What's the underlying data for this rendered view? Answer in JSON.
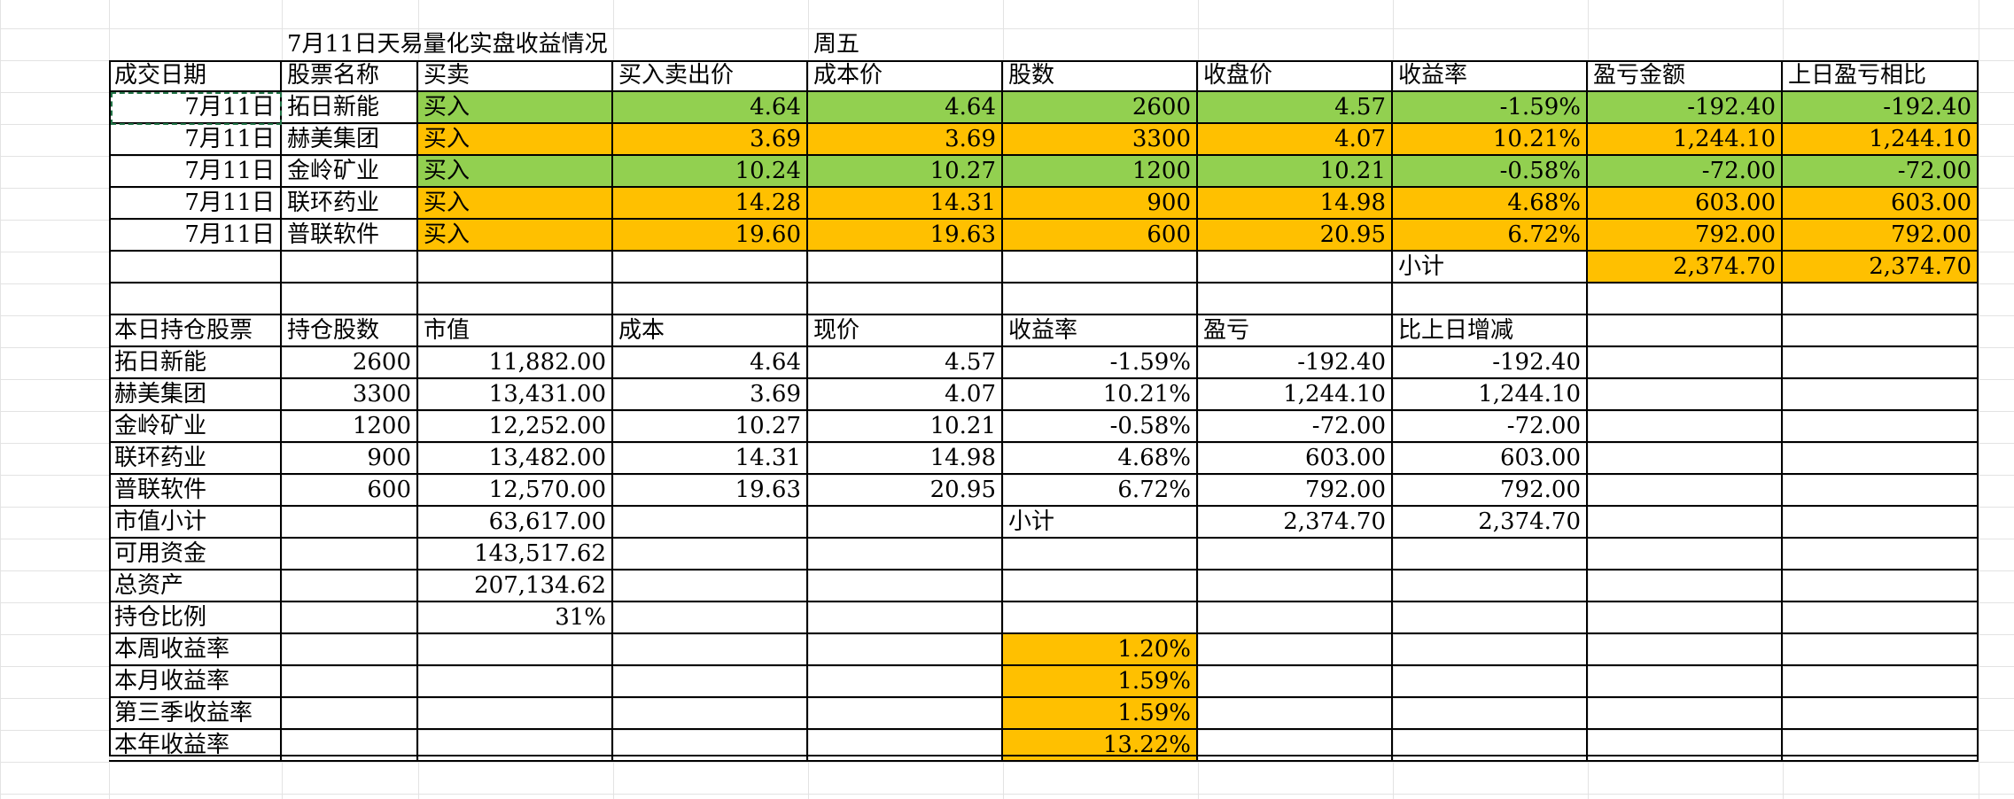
{
  "title": "7月11日天易量化实盘收益情况",
  "weekday": "周五",
  "trades": {
    "headers": [
      "成交日期",
      "股票名称",
      "买卖",
      "买入卖出价",
      "成本价",
      "股数",
      "收盘价",
      "收益率",
      "盈亏金额",
      "上日盈亏相比"
    ],
    "rows": [
      {
        "date": "7月11日",
        "name": "拓日新能",
        "side": "买入",
        "price": "4.64",
        "cost": "4.64",
        "shares": "2600",
        "close": "4.57",
        "rate": "-1.59%",
        "pnl": "-192.40",
        "vs_prev": "-192.40",
        "color": "green"
      },
      {
        "date": "7月11日",
        "name": "赫美集团",
        "side": "买入",
        "price": "3.69",
        "cost": "3.69",
        "shares": "3300",
        "close": "4.07",
        "rate": "10.21%",
        "pnl": "1,244.10",
        "vs_prev": "1,244.10",
        "color": "orange"
      },
      {
        "date": "7月11日",
        "name": "金岭矿业",
        "side": "买入",
        "price": "10.24",
        "cost": "10.27",
        "shares": "1200",
        "close": "10.21",
        "rate": "-0.58%",
        "pnl": "-72.00",
        "vs_prev": "-72.00",
        "color": "green"
      },
      {
        "date": "7月11日",
        "name": "联环药业",
        "side": "买入",
        "price": "14.28",
        "cost": "14.31",
        "shares": "900",
        "close": "14.98",
        "rate": "4.68%",
        "pnl": "603.00",
        "vs_prev": "603.00",
        "color": "orange"
      },
      {
        "date": "7月11日",
        "name": "普联软件",
        "side": "买入",
        "price": "19.60",
        "cost": "19.63",
        "shares": "600",
        "close": "20.95",
        "rate": "6.72%",
        "pnl": "792.00",
        "vs_prev": "792.00",
        "color": "orange"
      }
    ],
    "subtotal_label": "小计",
    "subtotal_pnl": "2,374.70",
    "subtotal_vs_prev": "2,374.70"
  },
  "holdings": {
    "headers": [
      "本日持仓股票",
      "持仓股数",
      "市值",
      "成本",
      "现价",
      "收益率",
      "盈亏",
      "比上日增减"
    ],
    "rows": [
      {
        "name": "拓日新能",
        "shares": "2600",
        "value": "11,882.00",
        "cost": "4.64",
        "price": "4.57",
        "rate": "-1.59%",
        "pnl": "-192.40",
        "change": "-192.40"
      },
      {
        "name": "赫美集团",
        "shares": "3300",
        "value": "13,431.00",
        "cost": "3.69",
        "price": "4.07",
        "rate": "10.21%",
        "pnl": "1,244.10",
        "change": "1,244.10"
      },
      {
        "name": "金岭矿业",
        "shares": "1200",
        "value": "12,252.00",
        "cost": "10.27",
        "price": "10.21",
        "rate": "-0.58%",
        "pnl": "-72.00",
        "change": "-72.00"
      },
      {
        "name": "联环药业",
        "shares": "900",
        "value": "13,482.00",
        "cost": "14.31",
        "price": "14.98",
        "rate": "4.68%",
        "pnl": "603.00",
        "change": "603.00"
      },
      {
        "name": "普联软件",
        "shares": "600",
        "value": "12,570.00",
        "cost": "19.63",
        "price": "20.95",
        "rate": "6.72%",
        "pnl": "792.00",
        "change": "792.00"
      }
    ],
    "value_subtotal_label": "市值小计",
    "value_subtotal": "63,617.00",
    "subtotal_label": "小计",
    "subtotal_pnl": "2,374.70",
    "subtotal_change": "2,374.70"
  },
  "summary": [
    {
      "label": "可用资金",
      "value": "143,517.62"
    },
    {
      "label": "总资产",
      "value": "207,134.62"
    },
    {
      "label": "持仓比例",
      "value": "31%"
    }
  ],
  "returns": [
    {
      "label": "本周收益率",
      "value": "1.20%"
    },
    {
      "label": "本月收益率",
      "value": "1.59%"
    },
    {
      "label": "第三季收益率",
      "value": "1.59%"
    },
    {
      "label": "本年收益率",
      "value": "13.22%"
    }
  ],
  "colors": {
    "green": "#92d050",
    "orange": "#ffc000",
    "grid": "#e3e3e3",
    "border": "#000000"
  }
}
